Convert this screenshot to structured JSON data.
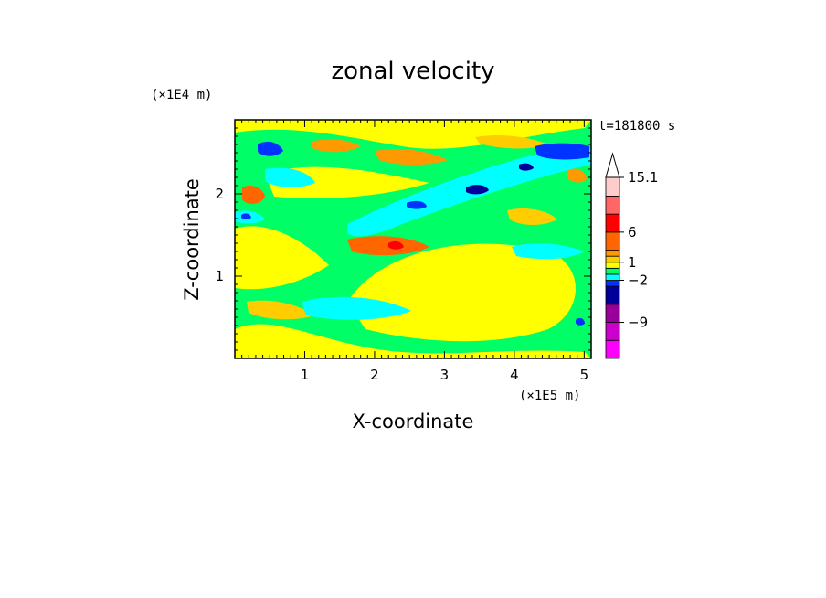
{
  "chart_data": {
    "type": "heatmap",
    "title": "zonal velocity",
    "xlabel": "X-coordinate",
    "ylabel": "Z-coordinate",
    "x_unit": "(×1E5 m)",
    "y_unit": "(×1E4 m)",
    "time_label": "t=181800 s",
    "xlim": [
      0,
      5.1
    ],
    "ylim": [
      0,
      2.9
    ],
    "x_ticks": [
      "1",
      "2",
      "3",
      "4",
      "5"
    ],
    "x_tick_values": [
      1,
      2,
      3,
      4,
      5
    ],
    "y_ticks": [
      "1",
      "2"
    ],
    "y_tick_values": [
      1,
      2
    ],
    "colorbar": {
      "levels": [
        -15,
        -12,
        -9,
        -6,
        -3,
        -2,
        -1,
        0,
        1,
        2,
        3,
        6,
        9,
        12,
        15.1
      ],
      "labels": [
        "15.1",
        "6",
        "1",
        "−2",
        "−9"
      ],
      "label_values": [
        15.1,
        6,
        1,
        -2,
        -9
      ],
      "colors": [
        "#ff00ff",
        "#cc00cc",
        "#990099",
        "#000099",
        "#0033ff",
        "#00ffff",
        "#00ff66",
        "#ffff00",
        "#ffcc00",
        "#ff9900",
        "#ff6600",
        "#ff0000",
        "#ff6666",
        "#ffcccc"
      ],
      "extend_top": true
    }
  }
}
